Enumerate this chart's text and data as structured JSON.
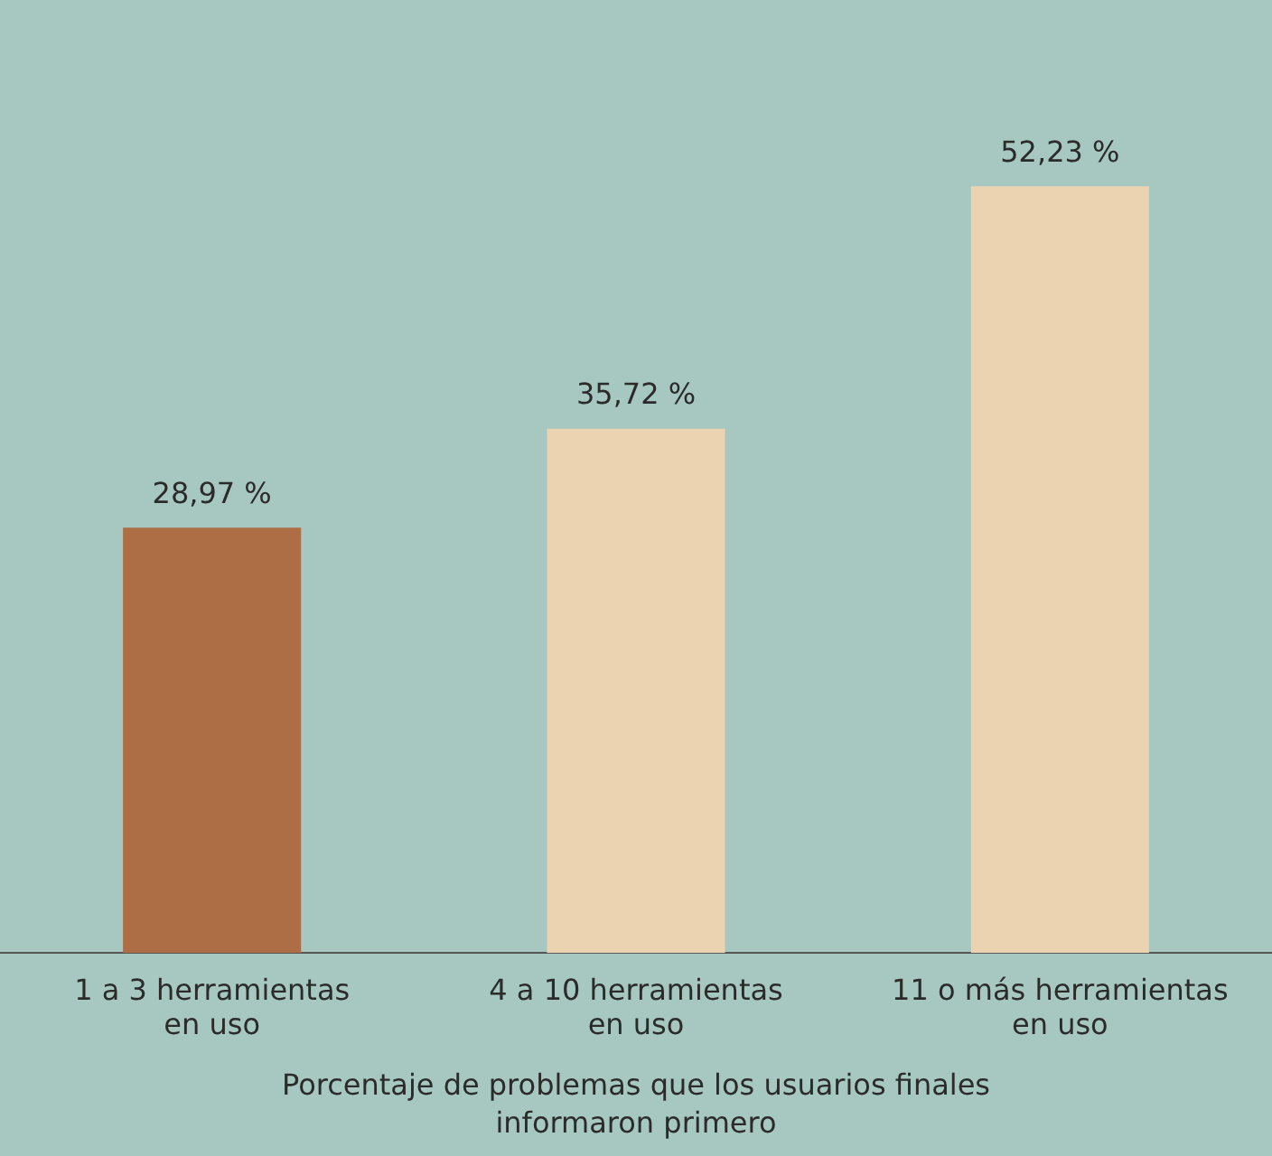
{
  "chart_data": {
    "type": "bar",
    "categories": [
      "1 a 3 herramientas en uso",
      "4 a 10 herramientas en uso",
      "11 o más herramientas en uso"
    ],
    "values": [
      28.97,
      35.72,
      52.23
    ],
    "colors": [
      "#ad6e46",
      "#ebd2b1",
      "#ebd2b1"
    ],
    "value_labels": [
      "28,97 %",
      "35,72 %",
      "52,23 %"
    ],
    "xlabel": "Porcentaje de problemas que los usuarios finales informaron primero",
    "grid": false,
    "legend": false
  }
}
